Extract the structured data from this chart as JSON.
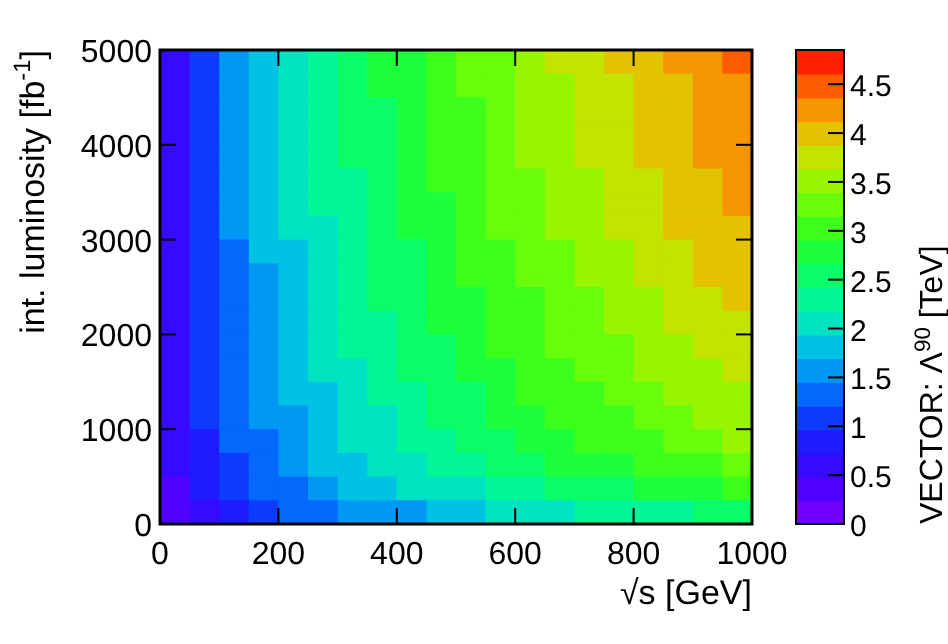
{
  "chart_data": {
    "type": "heatmap",
    "xlabel": "√s [GeV]",
    "ylabel": "int. luminosity [fb$^{-1}$]",
    "clabel": "VECTOR: Λ$^{90}$ [TeV]",
    "xlim": [
      0,
      1000
    ],
    "xticks": [
      0,
      200,
      400,
      600,
      800,
      1000
    ],
    "ylim": [
      0,
      5000
    ],
    "yticks": [
      0,
      1000,
      2000,
      3000,
      4000,
      5000
    ],
    "clim": [
      0,
      4.85
    ],
    "cticks": [
      0,
      0.5,
      1,
      1.5,
      2,
      2.5,
      3,
      3.5,
      4,
      4.5
    ],
    "cells": [
      [
        0.7,
        1.21,
        1.57,
        1.85,
        2.1,
        2.32,
        2.52,
        2.71,
        2.89,
        3.05,
        3.21,
        3.36,
        3.5,
        3.64,
        3.77,
        3.9,
        4.02,
        4.14,
        4.26,
        4.37
      ],
      [
        0.69,
        1.2,
        1.55,
        1.83,
        2.08,
        2.3,
        2.49,
        2.68,
        2.86,
        3.02,
        3.18,
        3.33,
        3.47,
        3.6,
        3.73,
        3.86,
        3.98,
        4.1,
        4.22,
        4.33
      ],
      [
        0.69,
        1.19,
        1.54,
        1.81,
        2.06,
        2.27,
        2.47,
        2.66,
        2.83,
        2.99,
        3.15,
        3.29,
        3.43,
        3.57,
        3.69,
        3.82,
        3.94,
        4.06,
        4.17,
        4.28
      ],
      [
        0.68,
        1.18,
        1.53,
        1.8,
        2.05,
        2.26,
        2.46,
        2.64,
        2.82,
        2.97,
        3.13,
        3.28,
        3.41,
        3.55,
        3.68,
        3.8,
        3.92,
        4.04,
        4.15,
        4.26
      ],
      [
        0.68,
        1.17,
        1.52,
        1.79,
        2.04,
        2.25,
        2.44,
        2.63,
        2.8,
        2.96,
        3.11,
        3.26,
        3.4,
        3.53,
        3.66,
        3.78,
        3.9,
        4.02,
        4.13,
        4.24
      ],
      [
        0.67,
        1.16,
        1.51,
        1.78,
        2.02,
        2.23,
        2.42,
        2.6,
        2.77,
        2.93,
        3.08,
        3.23,
        3.36,
        3.49,
        3.62,
        3.74,
        3.86,
        3.97,
        4.09,
        4.2
      ],
      [
        0.67,
        1.15,
        1.49,
        1.76,
        2.0,
        2.2,
        2.39,
        2.57,
        2.75,
        2.9,
        3.05,
        3.19,
        3.33,
        3.46,
        3.58,
        3.71,
        3.82,
        3.93,
        4.05,
        4.15
      ],
      [
        0.66,
        1.14,
        1.48,
        1.74,
        1.97,
        2.18,
        2.37,
        2.55,
        2.72,
        2.87,
        3.02,
        3.16,
        3.29,
        3.42,
        3.54,
        3.67,
        3.78,
        3.89,
        4.0,
        4.11
      ],
      [
        0.64,
        1.11,
        1.44,
        1.7,
        1.93,
        2.13,
        2.32,
        2.49,
        2.66,
        2.81,
        2.95,
        3.09,
        3.22,
        3.35,
        3.47,
        3.59,
        3.7,
        3.81,
        3.92,
        4.02
      ],
      [
        0.64,
        1.1,
        1.43,
        1.68,
        1.91,
        2.11,
        2.29,
        2.47,
        2.63,
        2.78,
        2.92,
        3.06,
        3.19,
        3.31,
        3.43,
        3.55,
        3.66,
        3.77,
        3.88,
        3.98
      ],
      [
        0.63,
        1.09,
        1.41,
        1.67,
        1.89,
        2.09,
        2.27,
        2.44,
        2.6,
        2.75,
        2.89,
        3.02,
        3.15,
        3.28,
        3.39,
        3.51,
        3.62,
        3.73,
        3.83,
        3.93
      ],
      [
        0.62,
        1.06,
        1.38,
        1.63,
        1.85,
        2.04,
        2.22,
        2.38,
        2.54,
        2.68,
        2.82,
        2.96,
        3.08,
        3.2,
        3.32,
        3.43,
        3.54,
        3.64,
        3.75,
        3.85
      ],
      [
        0.61,
        1.05,
        1.37,
        1.61,
        1.83,
        2.02,
        2.19,
        2.36,
        2.51,
        2.65,
        2.79,
        2.92,
        3.05,
        3.17,
        3.28,
        3.39,
        3.5,
        3.6,
        3.71,
        3.8
      ],
      [
        0.6,
        1.03,
        1.33,
        1.57,
        1.79,
        1.97,
        2.14,
        2.3,
        2.46,
        2.59,
        2.73,
        2.86,
        2.98,
        3.09,
        3.2,
        3.32,
        3.42,
        3.52,
        3.62,
        3.71
      ],
      [
        0.58,
        1.0,
        1.3,
        1.54,
        1.74,
        1.93,
        2.09,
        2.25,
        2.4,
        2.53,
        2.66,
        2.79,
        2.91,
        3.02,
        3.13,
        3.24,
        3.34,
        3.44,
        3.54,
        3.63
      ],
      [
        0.56,
        0.97,
        1.26,
        1.48,
        1.68,
        1.86,
        2.02,
        2.17,
        2.31,
        2.44,
        2.57,
        2.69,
        2.8,
        2.91,
        3.02,
        3.12,
        3.22,
        3.31,
        3.41,
        3.5
      ],
      [
        0.55,
        0.94,
        1.22,
        1.44,
        1.64,
        1.81,
        1.97,
        2.11,
        2.25,
        2.38,
        2.5,
        2.62,
        2.73,
        2.84,
        2.94,
        3.04,
        3.14,
        3.23,
        3.32,
        3.41
      ],
      [
        0.52,
        0.9,
        1.16,
        1.37,
        1.55,
        1.72,
        1.86,
        2.01,
        2.14,
        2.26,
        2.38,
        2.49,
        2.59,
        2.69,
        2.79,
        2.89,
        2.97,
        3.06,
        3.15,
        3.23
      ],
      [
        0.48,
        0.82,
        1.07,
        1.26,
        1.43,
        1.58,
        1.71,
        1.84,
        1.97,
        2.07,
        2.18,
        2.28,
        2.38,
        2.48,
        2.56,
        2.65,
        2.73,
        2.82,
        2.9,
        2.97
      ],
      [
        0.41,
        0.7,
        0.91,
        1.07,
        1.22,
        1.35,
        1.46,
        1.57,
        1.68,
        1.77,
        1.86,
        1.95,
        2.03,
        2.11,
        2.19,
        2.26,
        2.33,
        2.4,
        2.47,
        2.53
      ]
    ]
  }
}
